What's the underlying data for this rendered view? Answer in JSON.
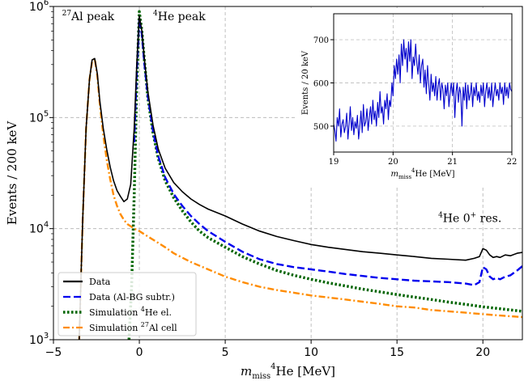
{
  "chart_data": [
    {
      "type": "line",
      "xlabel": "m_miss ⁴He [MeV]",
      "xlabel_parts": {
        "m": "m",
        "sub": "miss",
        "sup": "4",
        "rest": "He [MeV]"
      },
      "ylabel": "Events / 200 keV",
      "xlim": [
        -5,
        22.3
      ],
      "ylim": [
        1000,
        1000000
      ],
      "y_scale": "log",
      "grid": true,
      "x_ticks": [
        -5,
        0,
        5,
        10,
        15,
        20
      ],
      "x_tick_labels": [
        "−5",
        "0",
        "5",
        "10",
        "15",
        "20"
      ],
      "y_ticks": [
        1000,
        10000,
        100000,
        1000000
      ],
      "y_tick_labels": [
        {
          "base": "10",
          "exp": "3"
        },
        {
          "base": "10",
          "exp": "4"
        },
        {
          "base": "10",
          "exp": "5"
        },
        {
          "base": "10",
          "exp": "6"
        }
      ],
      "annotations": [
        {
          "sup": "27",
          "text": "Al peak",
          "x": -4.5,
          "y": 750000
        },
        {
          "sup": "4",
          "text": "He peak",
          "x": 0.8,
          "y": 750000
        },
        {
          "sup": "4",
          "text": "He 0",
          "sup2": "+",
          "text2": " res.",
          "x": 17.4,
          "y": 11500
        }
      ],
      "legend_position": "lower-left",
      "series": [
        {
          "name": "Data",
          "color": "#000000",
          "style": "solid",
          "x": [
            -3.5,
            -3.3,
            -3.1,
            -2.9,
            -2.75,
            -2.6,
            -2.45,
            -2.3,
            -2.1,
            -1.9,
            -1.7,
            -1.5,
            -1.3,
            -1.1,
            -0.9,
            -0.7,
            -0.5,
            -0.3,
            -0.15,
            0.0,
            0.15,
            0.3,
            0.5,
            0.8,
            1.1,
            1.5,
            2.0,
            2.5,
            3,
            3.5,
            4,
            5,
            6,
            7,
            8,
            9,
            10,
            11,
            12,
            13,
            14,
            15,
            16,
            17,
            18,
            19,
            19.5,
            19.8,
            20.0,
            20.2,
            20.4,
            20.6,
            20.8,
            21.0,
            21.3,
            21.6,
            22.0,
            22.3
          ],
          "y": [
            1000,
            12000,
            80000,
            220000,
            330000,
            340000,
            250000,
            140000,
            80000,
            52000,
            36000,
            27000,
            22000,
            19500,
            17500,
            18500,
            25000,
            80000,
            300000,
            820000,
            600000,
            330000,
            170000,
            85000,
            52000,
            35000,
            26000,
            21500,
            18500,
            16500,
            15000,
            13000,
            11000,
            9500,
            8500,
            7800,
            7200,
            6800,
            6500,
            6200,
            6000,
            5800,
            5600,
            5400,
            5300,
            5200,
            5400,
            5600,
            6600,
            6400,
            5800,
            5500,
            5600,
            5500,
            5800,
            5700,
            6000,
            6100
          ]
        },
        {
          "name": "Data (Al-BG subtr.)",
          "color": "#0000ee",
          "style": "dashed",
          "x": [
            -0.3,
            -0.15,
            0.0,
            0.15,
            0.3,
            0.5,
            0.8,
            1.1,
            1.5,
            2.0,
            2.5,
            3,
            3.5,
            4,
            5,
            6,
            7,
            8,
            9,
            10,
            11,
            12,
            13,
            14,
            15,
            16,
            17,
            18,
            19,
            19.5,
            19.8,
            20.0,
            20.2,
            20.4,
            20.6,
            20.8,
            21.0,
            21.3,
            21.6,
            22.0,
            22.3
          ],
          "y": [
            60000,
            260000,
            780000,
            560000,
            300000,
            155000,
            75000,
            45000,
            29000,
            20500,
            16000,
            13000,
            11000,
            9500,
            7600,
            6200,
            5300,
            4800,
            4500,
            4300,
            4100,
            3900,
            3750,
            3600,
            3500,
            3400,
            3350,
            3300,
            3200,
            3100,
            3300,
            4500,
            4300,
            3700,
            3500,
            3600,
            3500,
            3700,
            3800,
            4200,
            4600
          ]
        },
        {
          "name": "Simulation ⁴He el.",
          "name_parts": {
            "pre": "Simulation ",
            "sup": "4",
            "post": "He el."
          },
          "color": "#006400",
          "style": "dotted",
          "x": [
            -0.6,
            -0.45,
            -0.3,
            -0.15,
            0.0,
            0.15,
            0.3,
            0.5,
            0.8,
            1.1,
            1.5,
            2.0,
            2.5,
            3,
            3.5,
            4,
            5,
            6,
            7,
            8,
            9,
            10,
            11,
            12,
            13,
            14,
            15,
            16,
            17,
            18,
            19,
            20,
            21,
            22.3
          ],
          "y": [
            1000,
            3000,
            20000,
            200000,
            900000,
            600000,
            320000,
            150000,
            72000,
            43000,
            27000,
            19000,
            14500,
            11500,
            9500,
            8300,
            6800,
            5600,
            4800,
            4200,
            3800,
            3500,
            3250,
            3050,
            2850,
            2700,
            2550,
            2420,
            2300,
            2180,
            2080,
            1980,
            1900,
            1800
          ]
        },
        {
          "name": "Simulation ²⁷Al cell",
          "name_parts": {
            "pre": "Simulation ",
            "sup": "27",
            "post": "Al cell"
          },
          "color": "#ff8c00",
          "style": "dashdot",
          "x": [
            -3.5,
            -3.3,
            -3.1,
            -2.9,
            -2.75,
            -2.6,
            -2.45,
            -2.3,
            -2.1,
            -1.9,
            -1.7,
            -1.5,
            -1.3,
            -1.1,
            -0.9,
            -0.7,
            -0.5,
            -0.3,
            0,
            0.5,
            1,
            1.5,
            2,
            3,
            4,
            5,
            6,
            7,
            8,
            9,
            10,
            11,
            12,
            13,
            14,
            15,
            16,
            17,
            18,
            19,
            20,
            21,
            22.3
          ],
          "y": [
            1000,
            12000,
            80000,
            220000,
            320000,
            340000,
            240000,
            130000,
            70000,
            42000,
            28000,
            20000,
            16000,
            13500,
            12000,
            11000,
            10500,
            10000,
            9500,
            8500,
            7600,
            6800,
            6000,
            5000,
            4300,
            3700,
            3300,
            3000,
            2800,
            2650,
            2500,
            2400,
            2300,
            2200,
            2100,
            2000,
            1950,
            1850,
            1800,
            1750,
            1700,
            1650,
            1600
          ]
        }
      ]
    },
    {
      "type": "line",
      "xlabel": "m_miss ⁴He [MeV]",
      "xlabel_parts": {
        "m": "m",
        "sub": "miss",
        "sup": "4",
        "rest": "He [MeV]"
      },
      "ylabel": "Events / 20 keV",
      "xlim": [
        19,
        22
      ],
      "ylim": [
        440,
        760
      ],
      "grid": true,
      "x_ticks": [
        19,
        20,
        21,
        22
      ],
      "x_tick_labels": [
        "19",
        "20",
        "21",
        "22"
      ],
      "y_ticks": [
        500,
        600,
        700
      ],
      "y_tick_labels": [
        "500",
        "600",
        "700"
      ],
      "series": [
        {
          "color": "#0000cc",
          "style": "solid",
          "x": [
            19.0,
            19.02,
            19.04,
            19.06,
            19.08,
            19.1,
            19.12,
            19.14,
            19.16,
            19.18,
            19.2,
            19.22,
            19.24,
            19.26,
            19.28,
            19.3,
            19.32,
            19.34,
            19.36,
            19.38,
            19.4,
            19.42,
            19.44,
            19.46,
            19.48,
            19.5,
            19.52,
            19.54,
            19.56,
            19.58,
            19.6,
            19.62,
            19.64,
            19.66,
            19.68,
            19.7,
            19.72,
            19.74,
            19.76,
            19.78,
            19.8,
            19.82,
            19.84,
            19.86,
            19.88,
            19.9,
            19.92,
            19.94,
            19.96,
            19.98,
            20.0,
            20.02,
            20.04,
            20.06,
            20.08,
            20.1,
            20.12,
            20.14,
            20.16,
            20.18,
            20.2,
            20.22,
            20.24,
            20.26,
            20.28,
            20.3,
            20.32,
            20.34,
            20.36,
            20.38,
            20.4,
            20.42,
            20.44,
            20.46,
            20.48,
            20.5,
            20.52,
            20.54,
            20.56,
            20.58,
            20.6,
            20.62,
            20.64,
            20.66,
            20.68,
            20.7,
            20.72,
            20.74,
            20.76,
            20.78,
            20.8,
            20.82,
            20.84,
            20.86,
            20.88,
            20.9,
            20.92,
            20.94,
            20.96,
            20.98,
            21.0,
            21.02,
            21.04,
            21.06,
            21.08,
            21.1,
            21.12,
            21.14,
            21.16,
            21.18,
            21.2,
            21.22,
            21.24,
            21.26,
            21.28,
            21.3,
            21.32,
            21.34,
            21.36,
            21.38,
            21.4,
            21.42,
            21.44,
            21.46,
            21.48,
            21.5,
            21.52,
            21.54,
            21.56,
            21.58,
            21.6,
            21.62,
            21.64,
            21.66,
            21.68,
            21.7,
            21.72,
            21.74,
            21.76,
            21.78,
            21.8,
            21.82,
            21.84,
            21.86,
            21.88,
            21.9,
            21.92,
            21.94,
            21.96,
            21.98,
            22.0
          ],
          "y": [
            505,
            490,
            465,
            520,
            500,
            540,
            475,
            505,
            515,
            485,
            500,
            530,
            470,
            505,
            545,
            490,
            520,
            480,
            510,
            495,
            525,
            470,
            500,
            535,
            485,
            550,
            500,
            510,
            540,
            490,
            520,
            545,
            505,
            560,
            515,
            535,
            500,
            555,
            520,
            580,
            530,
            545,
            505,
            560,
            540,
            575,
            515,
            560,
            545,
            600,
            570,
            640,
            610,
            655,
            620,
            665,
            600,
            690,
            640,
            700,
            655,
            680,
            625,
            695,
            650,
            700,
            610,
            660,
            640,
            690,
            645,
            620,
            665,
            600,
            640,
            655,
            590,
            630,
            575,
            640,
            600,
            560,
            620,
            580,
            600,
            570,
            615,
            560,
            595,
            610,
            560,
            600,
            585,
            540,
            595,
            570,
            600,
            545,
            575,
            600,
            570,
            600,
            520,
            580,
            600,
            555,
            590,
            575,
            500,
            590,
            560,
            600,
            540,
            595,
            560,
            575,
            600,
            545,
            590,
            570,
            600,
            560,
            580,
            555,
            595,
            570,
            600,
            545,
            580,
            600,
            565,
            590,
            560,
            600,
            545,
            575,
            600,
            570,
            585,
            560,
            600,
            575,
            590,
            550,
            600,
            570,
            590,
            565,
            600,
            585,
            580
          ]
        }
      ]
    }
  ]
}
